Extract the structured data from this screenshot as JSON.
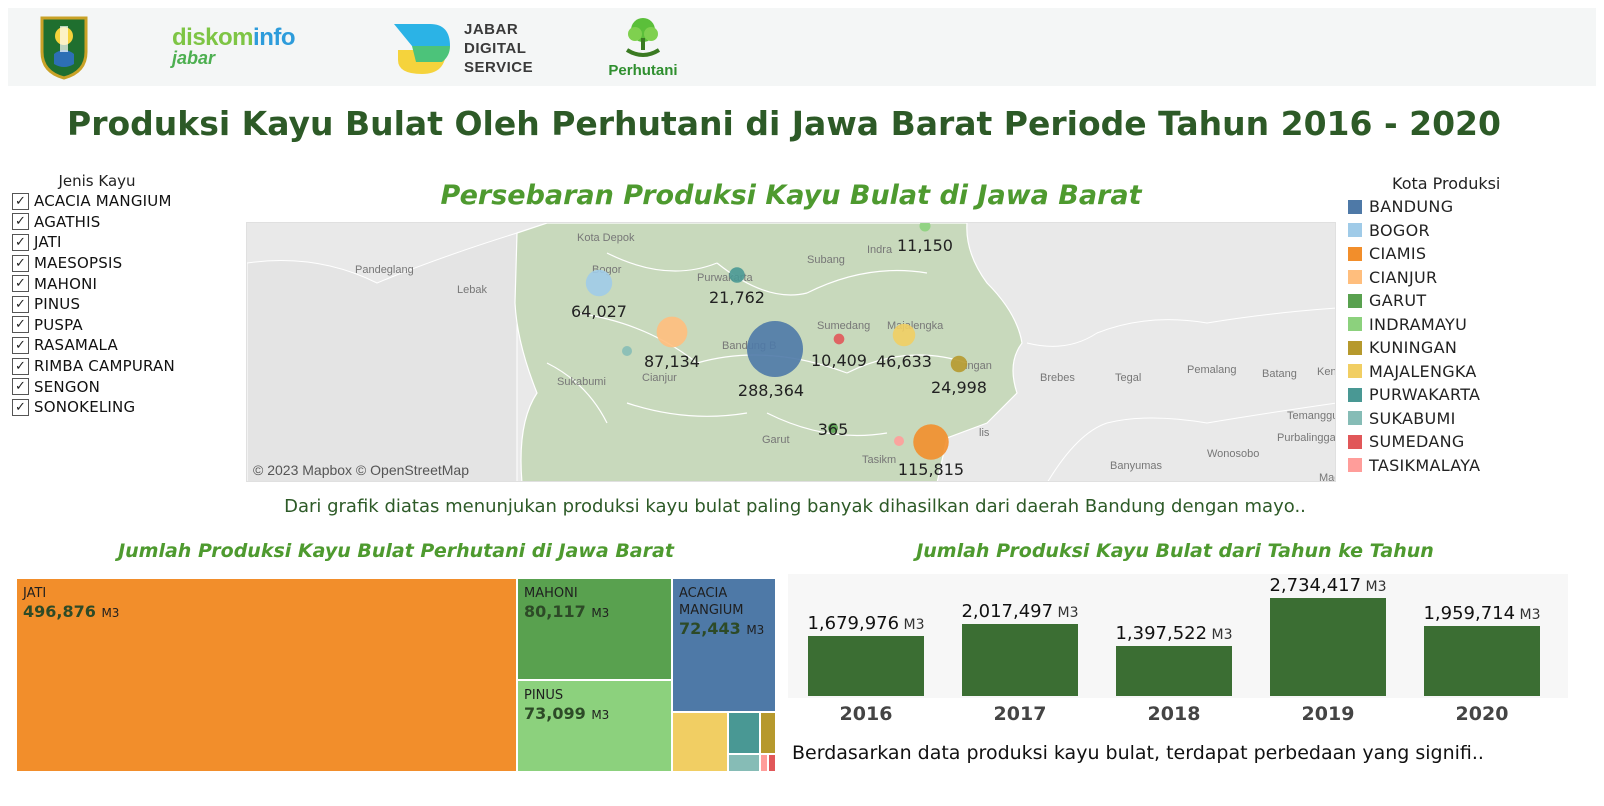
{
  "header": {
    "logos": {
      "diskominfo": {
        "part1": "diskom",
        "part2": "info",
        "part3": "jabar"
      },
      "jds": [
        "JABAR",
        "DIGITAL",
        "SERVICE"
      ],
      "perhutani": "Perhutani"
    }
  },
  "title": "Produksi Kayu Bulat Oleh Perhutani di Jawa Barat Periode Tahun 2016 - 2020",
  "filter": {
    "title": "Jenis Kayu",
    "check_glyph": "✓",
    "items": [
      "ACACIA MANGIUM",
      "AGATHIS",
      "JATI",
      "MAESOPSIS",
      "MAHONI",
      "PINUS",
      "PUSPA",
      "RASAMALA",
      "RIMBA CAMPURAN",
      "SENGON",
      "SONOKELING"
    ]
  },
  "map": {
    "title": "Persebaran Produksi Kayu Bulat di Jawa Barat",
    "attribution": "© 2023 Mapbox © OpenStreetMap",
    "place_labels": [
      "Pandeglang",
      "Lebak",
      "Kota Depok",
      "Bogor",
      "Purwakarta",
      "Subang",
      "Indra",
      "Sumedang",
      "Majalengka",
      "Bandung B",
      "Cianjur",
      "Sukabumi",
      "Garut",
      "Tasikm",
      "ingan",
      "Brebes",
      "Tegal",
      "Pemalang",
      "Batang",
      "Kendal",
      "Purbalingga",
      "Temanggun",
      "Wonosobo",
      "Banyumas",
      "Magel",
      "lis"
    ]
  },
  "legend": {
    "title": "Kota Produksi",
    "items": [
      {
        "name": "BANDUNG",
        "color": "#4e79a7"
      },
      {
        "name": "BOGOR",
        "color": "#a0cbe8"
      },
      {
        "name": "CIAMIS",
        "color": "#f28e2b"
      },
      {
        "name": "CIANJUR",
        "color": "#ffbe7d"
      },
      {
        "name": "GARUT",
        "color": "#59a14f"
      },
      {
        "name": "INDRAMAYU",
        "color": "#8cd17d"
      },
      {
        "name": "KUNINGAN",
        "color": "#b6992d"
      },
      {
        "name": "MAJALENGKA",
        "color": "#f1ce63"
      },
      {
        "name": "PURWAKARTA",
        "color": "#499894"
      },
      {
        "name": "SUKABUMI",
        "color": "#86bcb6"
      },
      {
        "name": "SUMEDANG",
        "color": "#e15759"
      },
      {
        "name": "TASIKMALAYA",
        "color": "#ff9d9a"
      }
    ]
  },
  "caption_map": "Dari grafik diatas menunjukan produksi kayu bulat paling banyak dihasilkan dari daerah Bandung dengan mayo..",
  "treemap": {
    "title": "Jumlah Produksi Kayu Bulat Perhutani di Jawa Barat",
    "unit": "M3",
    "tiles": [
      {
        "name": "JATI",
        "value": "496,876",
        "color": "#f28e2b"
      },
      {
        "name": "MAHONI",
        "value": "80,117",
        "color": "#59a14f"
      },
      {
        "name": "PINUS",
        "value": "73,099",
        "color": "#8cd17d"
      },
      {
        "name": "ACACIA MANGIUM",
        "value": "72,443",
        "color": "#4e79a7"
      }
    ]
  },
  "bar": {
    "title": "Jumlah Produksi Kayu Bulat dari Tahun ke Tahun",
    "unit": "M3"
  },
  "caption_bar": "Berdasarkan data produksi kayu bulat, terdapat perbedaan yang signifi..",
  "chart_data": [
    {
      "type": "scatter",
      "title": "Persebaran Produksi Kayu Bulat di Jawa Barat",
      "series": [
        {
          "name": "BANDUNG",
          "value": 288364,
          "label": "288,364"
        },
        {
          "name": "BOGOR",
          "value": 64027,
          "label": "64,027"
        },
        {
          "name": "CIAMIS",
          "value": 115815,
          "label": "115,815"
        },
        {
          "name": "CIANJUR",
          "value": 87134,
          "label": "87,134"
        },
        {
          "name": "GARUT",
          "value": 365,
          "label": "365"
        },
        {
          "name": "INDRAMAYU",
          "value": 11150,
          "label": "11,150"
        },
        {
          "name": "KUNINGAN",
          "value": 24998,
          "label": "24,998"
        },
        {
          "name": "MAJALENGKA",
          "value": 46633,
          "label": "46,633"
        },
        {
          "name": "PURWAKARTA",
          "value": 21762,
          "label": "21,762"
        },
        {
          "name": "SUKABUMI",
          "value": null,
          "label": ""
        },
        {
          "name": "SUMEDANG",
          "value": 10409,
          "label": "10,409"
        },
        {
          "name": "TASIKMALAYA",
          "value": null,
          "label": ""
        }
      ]
    },
    {
      "type": "bar",
      "title": "Jumlah Produksi Kayu Bulat dari Tahun ke Tahun",
      "categories": [
        "2016",
        "2017",
        "2018",
        "2019",
        "2020"
      ],
      "values": [
        1679976,
        2017497,
        1397522,
        2734417,
        1959714
      ],
      "labels": [
        "1,679,976",
        "2,017,497",
        "1,397,522",
        "2,734,417",
        "1,959,714"
      ],
      "color": "#3b6e33"
    }
  ]
}
